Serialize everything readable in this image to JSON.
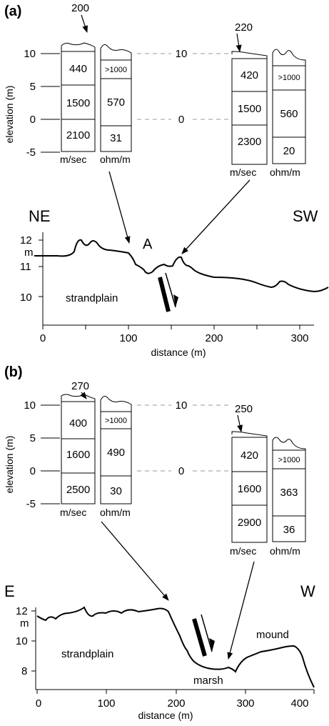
{
  "panel_a": {
    "label": "(a)",
    "elevation_axis": {
      "title": "elevation (m)",
      "ticks": [
        "10",
        "5",
        "0",
        "-5"
      ],
      "center_ticks": [
        "10",
        "0"
      ]
    },
    "left_column": {
      "surface_value": "200",
      "velocity_layers": [
        "440",
        "1500",
        "2100"
      ],
      "resistivity_layers": [
        ">1000",
        "570",
        "31"
      ],
      "velocity_unit": "m/sec",
      "resistivity_unit": "ohm/m"
    },
    "right_column": {
      "surface_value": "220",
      "velocity_layers": [
        "420",
        "1500",
        "2300"
      ],
      "resistivity_layers": [
        ">1000",
        "560",
        "20"
      ],
      "velocity_unit": "m/sec",
      "resistivity_unit": "ohm/m"
    },
    "profile": {
      "left_direction": "NE",
      "right_direction": "SW",
      "point_label": "A",
      "terrain_labels": [
        "strandplain"
      ],
      "y_unit": "m",
      "y_ticks": [
        "12",
        "11",
        "10"
      ],
      "x_ticks": [
        "0",
        "100",
        "200",
        "300"
      ],
      "x_title": "distance (m)"
    }
  },
  "panel_b": {
    "label": "(b)",
    "elevation_axis": {
      "title": "elevation (m)",
      "ticks": [
        "10",
        "5",
        "0",
        "-5"
      ],
      "center_ticks": [
        "10",
        "0"
      ]
    },
    "left_column": {
      "surface_value": "270",
      "velocity_layers": [
        "400",
        "1600",
        "2500"
      ],
      "resistivity_layers": [
        ">1000",
        "490",
        "30"
      ],
      "velocity_unit": "m/sec",
      "resistivity_unit": "ohm/m"
    },
    "right_column": {
      "surface_value": "250",
      "velocity_layers": [
        "420",
        "1600",
        "2900"
      ],
      "resistivity_layers": [
        ">1000",
        "363",
        "36"
      ],
      "velocity_unit": "m/sec",
      "resistivity_unit": "ohm/m"
    },
    "profile": {
      "left_direction": "E",
      "right_direction": "W",
      "terrain_labels": [
        "strandplain",
        "marsh",
        "mound"
      ],
      "y_unit": "m",
      "y_ticks": [
        "12",
        "10",
        "8"
      ],
      "x_ticks": [
        "0",
        "100",
        "200",
        "300",
        "400"
      ],
      "x_title": "distance (m)"
    }
  }
}
